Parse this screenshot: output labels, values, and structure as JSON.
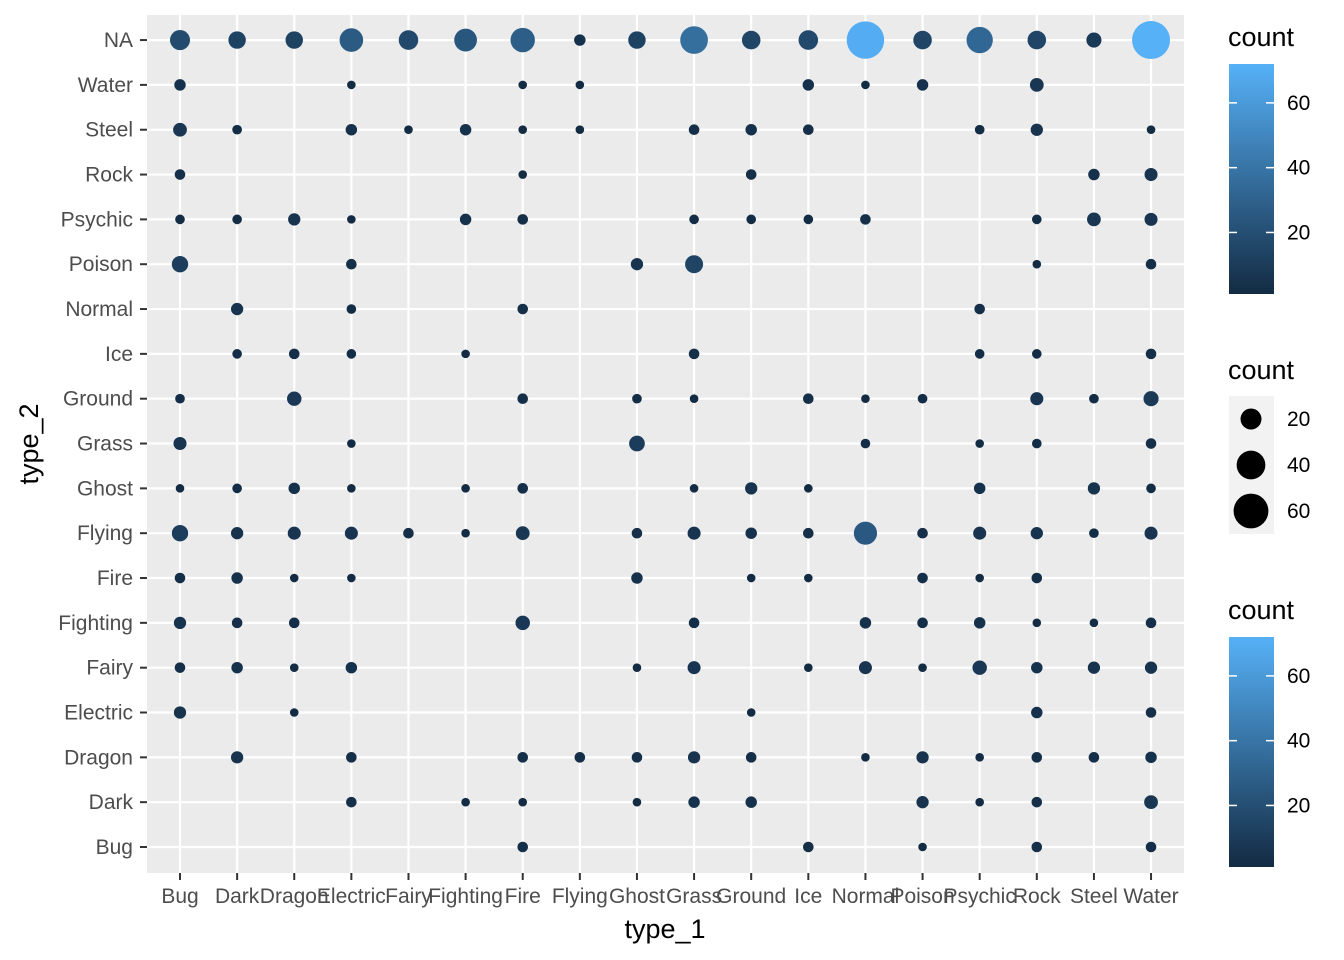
{
  "chart_data": {
    "type": "scatter",
    "xlabel": "type_1",
    "ylabel": "type_2",
    "x_categories": [
      "Bug",
      "Dark",
      "Dragon",
      "Electric",
      "Fairy",
      "Fighting",
      "Fire",
      "Flying",
      "Ghost",
      "Grass",
      "Ground",
      "Ice",
      "Normal",
      "Poison",
      "Psychic",
      "Rock",
      "Steel",
      "Water"
    ],
    "y_categories": [
      "Bug",
      "Dark",
      "Dragon",
      "Electric",
      "Fairy",
      "Fighting",
      "Fire",
      "Flying",
      "Ghost",
      "Grass",
      "Ground",
      "Ice",
      "Normal",
      "Poison",
      "Psychic",
      "Rock",
      "Steel",
      "Water",
      "NA"
    ],
    "grid": true,
    "size_scale": {
      "min": 1,
      "max": 72
    },
    "color_scale": {
      "low": "#132B43",
      "high": "#56B1F7",
      "min": 1,
      "max": 72
    },
    "legends": [
      {
        "kind": "colorbar",
        "title": "count",
        "ticks": [
          20,
          40,
          60
        ],
        "placement": "right-top"
      },
      {
        "kind": "size",
        "title": "count",
        "ticks": [
          20,
          40,
          60
        ],
        "placement": "right-middle"
      },
      {
        "kind": "colorbar",
        "title": "count",
        "ticks": [
          20,
          40,
          60
        ],
        "placement": "right-bottom"
      }
    ],
    "points": [
      {
        "x": "Bug",
        "y": "NA",
        "count": 18
      },
      {
        "x": "Dark",
        "y": "NA",
        "count": 13
      },
      {
        "x": "Dragon",
        "y": "NA",
        "count": 13
      },
      {
        "x": "Electric",
        "y": "NA",
        "count": 26
      },
      {
        "x": "Fairy",
        "y": "NA",
        "count": 17
      },
      {
        "x": "Fighting",
        "y": "NA",
        "count": 24
      },
      {
        "x": "Fire",
        "y": "NA",
        "count": 28
      },
      {
        "x": "Flying",
        "y": "NA",
        "count": 4
      },
      {
        "x": "Ghost",
        "y": "NA",
        "count": 13
      },
      {
        "x": "Grass",
        "y": "NA",
        "count": 37
      },
      {
        "x": "Ground",
        "y": "NA",
        "count": 15
      },
      {
        "x": "Ice",
        "y": "NA",
        "count": 17
      },
      {
        "x": "Normal",
        "y": "NA",
        "count": 70
      },
      {
        "x": "Poison",
        "y": "NA",
        "count": 15
      },
      {
        "x": "Psychic",
        "y": "NA",
        "count": 33
      },
      {
        "x": "Rock",
        "y": "NA",
        "count": 15
      },
      {
        "x": "Steel",
        "y": "NA",
        "count": 9
      },
      {
        "x": "Water",
        "y": "NA",
        "count": 72
      },
      {
        "x": "Bug",
        "y": "Water",
        "count": 4
      },
      {
        "x": "Electric",
        "y": "Water",
        "count": 1
      },
      {
        "x": "Fire",
        "y": "Water",
        "count": 1
      },
      {
        "x": "Flying",
        "y": "Water",
        "count": 1
      },
      {
        "x": "Ice",
        "y": "Water",
        "count": 4
      },
      {
        "x": "Normal",
        "y": "Water",
        "count": 1
      },
      {
        "x": "Poison",
        "y": "Water",
        "count": 4
      },
      {
        "x": "Rock",
        "y": "Water",
        "count": 7
      },
      {
        "x": "Bug",
        "y": "Steel",
        "count": 7
      },
      {
        "x": "Dark",
        "y": "Steel",
        "count": 2
      },
      {
        "x": "Electric",
        "y": "Steel",
        "count": 4
      },
      {
        "x": "Fairy",
        "y": "Steel",
        "count": 1
      },
      {
        "x": "Fighting",
        "y": "Steel",
        "count": 4
      },
      {
        "x": "Fire",
        "y": "Steel",
        "count": 1
      },
      {
        "x": "Flying",
        "y": "Steel",
        "count": 1
      },
      {
        "x": "Grass",
        "y": "Steel",
        "count": 3
      },
      {
        "x": "Ground",
        "y": "Steel",
        "count": 4
      },
      {
        "x": "Ice",
        "y": "Steel",
        "count": 3
      },
      {
        "x": "Psychic",
        "y": "Steel",
        "count": 2
      },
      {
        "x": "Rock",
        "y": "Steel",
        "count": 5
      },
      {
        "x": "Water",
        "y": "Steel",
        "count": 1
      },
      {
        "x": "Bug",
        "y": "Rock",
        "count": 3
      },
      {
        "x": "Fire",
        "y": "Rock",
        "count": 1
      },
      {
        "x": "Ground",
        "y": "Rock",
        "count": 3
      },
      {
        "x": "Steel",
        "y": "Rock",
        "count": 4
      },
      {
        "x": "Water",
        "y": "Rock",
        "count": 6
      },
      {
        "x": "Bug",
        "y": "Psychic",
        "count": 2
      },
      {
        "x": "Dark",
        "y": "Psychic",
        "count": 2
      },
      {
        "x": "Dragon",
        "y": "Psychic",
        "count": 5
      },
      {
        "x": "Electric",
        "y": "Psychic",
        "count": 1
      },
      {
        "x": "Fighting",
        "y": "Psychic",
        "count": 4
      },
      {
        "x": "Fire",
        "y": "Psychic",
        "count": 3
      },
      {
        "x": "Grass",
        "y": "Psychic",
        "count": 2
      },
      {
        "x": "Ground",
        "y": "Psychic",
        "count": 2
      },
      {
        "x": "Ice",
        "y": "Psychic",
        "count": 2
      },
      {
        "x": "Normal",
        "y": "Psychic",
        "count": 3
      },
      {
        "x": "Rock",
        "y": "Psychic",
        "count": 2
      },
      {
        "x": "Steel",
        "y": "Psychic",
        "count": 7
      },
      {
        "x": "Water",
        "y": "Psychic",
        "count": 6
      },
      {
        "x": "Bug",
        "y": "Poison",
        "count": 11
      },
      {
        "x": "Electric",
        "y": "Poison",
        "count": 3
      },
      {
        "x": "Ghost",
        "y": "Poison",
        "count": 5
      },
      {
        "x": "Grass",
        "y": "Poison",
        "count": 14
      },
      {
        "x": "Rock",
        "y": "Poison",
        "count": 1
      },
      {
        "x": "Water",
        "y": "Poison",
        "count": 3
      },
      {
        "x": "Dark",
        "y": "Normal",
        "count": 5
      },
      {
        "x": "Electric",
        "y": "Normal",
        "count": 2
      },
      {
        "x": "Fire",
        "y": "Normal",
        "count": 3
      },
      {
        "x": "Psychic",
        "y": "Normal",
        "count": 3
      },
      {
        "x": "Dark",
        "y": "Ice",
        "count": 2
      },
      {
        "x": "Dragon",
        "y": "Ice",
        "count": 3
      },
      {
        "x": "Electric",
        "y": "Ice",
        "count": 2
      },
      {
        "x": "Fighting",
        "y": "Ice",
        "count": 1
      },
      {
        "x": "Grass",
        "y": "Ice",
        "count": 3
      },
      {
        "x": "Psychic",
        "y": "Ice",
        "count": 2
      },
      {
        "x": "Rock",
        "y": "Ice",
        "count": 2
      },
      {
        "x": "Water",
        "y": "Ice",
        "count": 3
      },
      {
        "x": "Bug",
        "y": "Ground",
        "count": 2
      },
      {
        "x": "Dragon",
        "y": "Ground",
        "count": 8
      },
      {
        "x": "Fire",
        "y": "Ground",
        "count": 3
      },
      {
        "x": "Ghost",
        "y": "Ground",
        "count": 2
      },
      {
        "x": "Grass",
        "y": "Ground",
        "count": 1
      },
      {
        "x": "Ice",
        "y": "Ground",
        "count": 3
      },
      {
        "x": "Normal",
        "y": "Ground",
        "count": 1
      },
      {
        "x": "Poison",
        "y": "Ground",
        "count": 2
      },
      {
        "x": "Rock",
        "y": "Ground",
        "count": 6
      },
      {
        "x": "Steel",
        "y": "Ground",
        "count": 2
      },
      {
        "x": "Water",
        "y": "Ground",
        "count": 9
      },
      {
        "x": "Bug",
        "y": "Grass",
        "count": 6
      },
      {
        "x": "Electric",
        "y": "Grass",
        "count": 1
      },
      {
        "x": "Ghost",
        "y": "Grass",
        "count": 10
      },
      {
        "x": "Normal",
        "y": "Grass",
        "count": 2
      },
      {
        "x": "Psychic",
        "y": "Grass",
        "count": 1
      },
      {
        "x": "Rock",
        "y": "Grass",
        "count": 2
      },
      {
        "x": "Water",
        "y": "Grass",
        "count": 3
      },
      {
        "x": "Bug",
        "y": "Ghost",
        "count": 1
      },
      {
        "x": "Dark",
        "y": "Ghost",
        "count": 2
      },
      {
        "x": "Dragon",
        "y": "Ghost",
        "count": 4
      },
      {
        "x": "Electric",
        "y": "Ghost",
        "count": 1
      },
      {
        "x": "Fighting",
        "y": "Ghost",
        "count": 1
      },
      {
        "x": "Fire",
        "y": "Ghost",
        "count": 3
      },
      {
        "x": "Grass",
        "y": "Ghost",
        "count": 1
      },
      {
        "x": "Ground",
        "y": "Ghost",
        "count": 5
      },
      {
        "x": "Ice",
        "y": "Ghost",
        "count": 1
      },
      {
        "x": "Psychic",
        "y": "Ghost",
        "count": 4
      },
      {
        "x": "Steel",
        "y": "Ghost",
        "count": 5
      },
      {
        "x": "Water",
        "y": "Ghost",
        "count": 2
      },
      {
        "x": "Bug",
        "y": "Flying",
        "count": 11
      },
      {
        "x": "Dark",
        "y": "Flying",
        "count": 5
      },
      {
        "x": "Dragon",
        "y": "Flying",
        "count": 6
      },
      {
        "x": "Electric",
        "y": "Flying",
        "count": 6
      },
      {
        "x": "Fairy",
        "y": "Flying",
        "count": 3
      },
      {
        "x": "Fighting",
        "y": "Flying",
        "count": 1
      },
      {
        "x": "Fire",
        "y": "Flying",
        "count": 7
      },
      {
        "x": "Ghost",
        "y": "Flying",
        "count": 3
      },
      {
        "x": "Grass",
        "y": "Flying",
        "count": 6
      },
      {
        "x": "Ground",
        "y": "Flying",
        "count": 4
      },
      {
        "x": "Ice",
        "y": "Flying",
        "count": 3
      },
      {
        "x": "Normal",
        "y": "Flying",
        "count": 25
      },
      {
        "x": "Poison",
        "y": "Flying",
        "count": 3
      },
      {
        "x": "Psychic",
        "y": "Flying",
        "count": 6
      },
      {
        "x": "Rock",
        "y": "Flying",
        "count": 5
      },
      {
        "x": "Steel",
        "y": "Flying",
        "count": 2
      },
      {
        "x": "Water",
        "y": "Flying",
        "count": 6
      },
      {
        "x": "Bug",
        "y": "Fire",
        "count": 3
      },
      {
        "x": "Dark",
        "y": "Fire",
        "count": 4
      },
      {
        "x": "Dragon",
        "y": "Fire",
        "count": 1
      },
      {
        "x": "Electric",
        "y": "Fire",
        "count": 1
      },
      {
        "x": "Ghost",
        "y": "Fire",
        "count": 4
      },
      {
        "x": "Ground",
        "y": "Fire",
        "count": 1
      },
      {
        "x": "Ice",
        "y": "Fire",
        "count": 1
      },
      {
        "x": "Poison",
        "y": "Fire",
        "count": 3
      },
      {
        "x": "Psychic",
        "y": "Fire",
        "count": 1
      },
      {
        "x": "Rock",
        "y": "Fire",
        "count": 3
      },
      {
        "x": "Bug",
        "y": "Fighting",
        "count": 5
      },
      {
        "x": "Dark",
        "y": "Fighting",
        "count": 3
      },
      {
        "x": "Dragon",
        "y": "Fighting",
        "count": 3
      },
      {
        "x": "Fire",
        "y": "Fighting",
        "count": 8
      },
      {
        "x": "Grass",
        "y": "Fighting",
        "count": 3
      },
      {
        "x": "Normal",
        "y": "Fighting",
        "count": 4
      },
      {
        "x": "Poison",
        "y": "Fighting",
        "count": 3
      },
      {
        "x": "Psychic",
        "y": "Fighting",
        "count": 4
      },
      {
        "x": "Rock",
        "y": "Fighting",
        "count": 1
      },
      {
        "x": "Steel",
        "y": "Fighting",
        "count": 1
      },
      {
        "x": "Water",
        "y": "Fighting",
        "count": 3
      },
      {
        "x": "Bug",
        "y": "Fairy",
        "count": 3
      },
      {
        "x": "Dark",
        "y": "Fairy",
        "count": 4
      },
      {
        "x": "Dragon",
        "y": "Fairy",
        "count": 1
      },
      {
        "x": "Electric",
        "y": "Fairy",
        "count": 4
      },
      {
        "x": "Ghost",
        "y": "Fairy",
        "count": 1
      },
      {
        "x": "Grass",
        "y": "Fairy",
        "count": 6
      },
      {
        "x": "Ice",
        "y": "Fairy",
        "count": 1
      },
      {
        "x": "Normal",
        "y": "Fairy",
        "count": 6
      },
      {
        "x": "Poison",
        "y": "Fairy",
        "count": 1
      },
      {
        "x": "Psychic",
        "y": "Fairy",
        "count": 8
      },
      {
        "x": "Rock",
        "y": "Fairy",
        "count": 4
      },
      {
        "x": "Steel",
        "y": "Fairy",
        "count": 5
      },
      {
        "x": "Water",
        "y": "Fairy",
        "count": 5
      },
      {
        "x": "Bug",
        "y": "Electric",
        "count": 5
      },
      {
        "x": "Dragon",
        "y": "Electric",
        "count": 1
      },
      {
        "x": "Ground",
        "y": "Electric",
        "count": 1
      },
      {
        "x": "Rock",
        "y": "Electric",
        "count": 4
      },
      {
        "x": "Water",
        "y": "Electric",
        "count": 3
      },
      {
        "x": "Dark",
        "y": "Dragon",
        "count": 5
      },
      {
        "x": "Electric",
        "y": "Dragon",
        "count": 3
      },
      {
        "x": "Fire",
        "y": "Dragon",
        "count": 3
      },
      {
        "x": "Flying",
        "y": "Dragon",
        "count": 3
      },
      {
        "x": "Ghost",
        "y": "Dragon",
        "count": 3
      },
      {
        "x": "Grass",
        "y": "Dragon",
        "count": 5
      },
      {
        "x": "Ground",
        "y": "Dragon",
        "count": 3
      },
      {
        "x": "Normal",
        "y": "Dragon",
        "count": 1
      },
      {
        "x": "Poison",
        "y": "Dragon",
        "count": 5
      },
      {
        "x": "Psychic",
        "y": "Dragon",
        "count": 1
      },
      {
        "x": "Rock",
        "y": "Dragon",
        "count": 3
      },
      {
        "x": "Steel",
        "y": "Dragon",
        "count": 3
      },
      {
        "x": "Water",
        "y": "Dragon",
        "count": 4
      },
      {
        "x": "Electric",
        "y": "Dark",
        "count": 3
      },
      {
        "x": "Fighting",
        "y": "Dark",
        "count": 1
      },
      {
        "x": "Fire",
        "y": "Dark",
        "count": 1
      },
      {
        "x": "Ghost",
        "y": "Dark",
        "count": 1
      },
      {
        "x": "Grass",
        "y": "Dark",
        "count": 4
      },
      {
        "x": "Ground",
        "y": "Dark",
        "count": 4
      },
      {
        "x": "Poison",
        "y": "Dark",
        "count": 5
      },
      {
        "x": "Psychic",
        "y": "Dark",
        "count": 1
      },
      {
        "x": "Rock",
        "y": "Dark",
        "count": 3
      },
      {
        "x": "Water",
        "y": "Dark",
        "count": 7
      },
      {
        "x": "Fire",
        "y": "Bug",
        "count": 3
      },
      {
        "x": "Ice",
        "y": "Bug",
        "count": 3
      },
      {
        "x": "Poison",
        "y": "Bug",
        "count": 1
      },
      {
        "x": "Rock",
        "y": "Bug",
        "count": 3
      },
      {
        "x": "Water",
        "y": "Bug",
        "count": 3
      }
    ]
  }
}
